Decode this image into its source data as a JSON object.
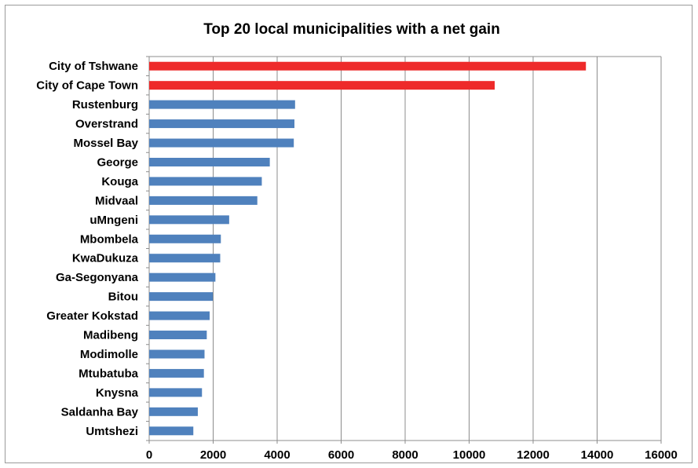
{
  "chart_data": {
    "type": "bar",
    "orientation": "horizontal",
    "title": "Top 20 local municipalities with a net gain",
    "xlabel": "",
    "ylabel": "",
    "xlim": [
      0,
      16000
    ],
    "xticks": [
      0,
      2000,
      4000,
      6000,
      8000,
      10000,
      12000,
      14000,
      16000
    ],
    "grid": true,
    "legend": "none",
    "categories": [
      "City of Tshwane",
      "City of Cape Town",
      "Rustenburg",
      "Overstrand",
      "Mossel Bay",
      "George",
      "Kouga",
      "Midvaal",
      "uMngeni",
      "Mbombela",
      "KwaDukuza",
      "Ga-Segonyana",
      "Bitou",
      "Greater Kokstad",
      "Madibeng",
      "Modimolle",
      "Mtubatuba",
      "Knysna",
      "Saldanha Bay",
      "Umtshezi"
    ],
    "values": [
      13650,
      10800,
      4560,
      4540,
      4520,
      3770,
      3520,
      3380,
      2500,
      2240,
      2220,
      2070,
      1990,
      1890,
      1800,
      1730,
      1710,
      1650,
      1520,
      1380
    ],
    "colors": [
      "#ee2a2a",
      "#ee2a2a",
      "#4f81bd",
      "#4f81bd",
      "#4f81bd",
      "#4f81bd",
      "#4f81bd",
      "#4f81bd",
      "#4f81bd",
      "#4f81bd",
      "#4f81bd",
      "#4f81bd",
      "#4f81bd",
      "#4f81bd",
      "#4f81bd",
      "#4f81bd",
      "#4f81bd",
      "#4f81bd",
      "#4f81bd",
      "#4f81bd"
    ]
  }
}
